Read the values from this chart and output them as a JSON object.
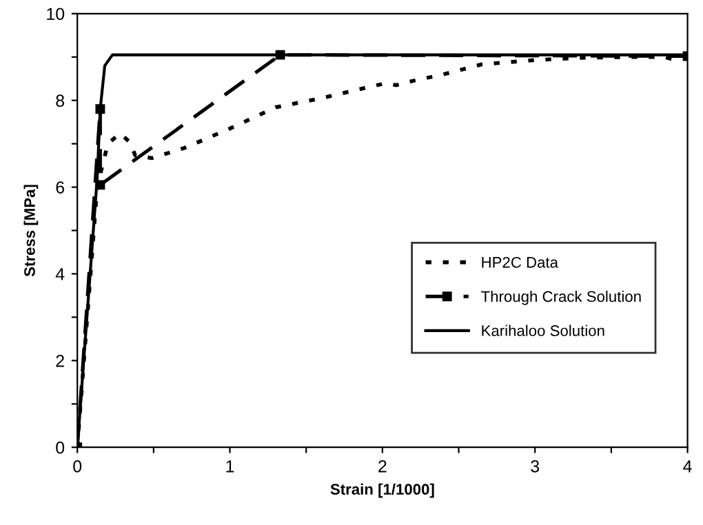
{
  "chart_data": {
    "type": "line",
    "xlabel": "Strain [1/1000]",
    "ylabel": "Stress [MPa]",
    "xlim": [
      0,
      4
    ],
    "ylim": [
      0,
      10
    ],
    "xticks": [
      0,
      {
        "value": 0.5,
        "label": null
      },
      1,
      {
        "value": 1.5,
        "label": null
      },
      2,
      {
        "value": 2.5,
        "label": null
      },
      3,
      {
        "value": 3.5,
        "label": null
      },
      4
    ],
    "yticks": [
      0,
      {
        "value": 1,
        "label": null
      },
      2,
      {
        "value": 3,
        "label": null
      },
      4,
      {
        "value": 5,
        "label": null
      },
      6,
      {
        "value": 7,
        "label": null
      },
      8,
      {
        "value": 9,
        "label": null
      },
      10
    ],
    "grid": false,
    "legend": "lower right",
    "series": [
      {
        "name": "HP2C Data",
        "color": "#000000",
        "line_style": "dotted",
        "marker": "none",
        "x": [
          0,
          0.13,
          0.2,
          0.28,
          0.34,
          0.38,
          0.49,
          0.7,
          1.0,
          1.3,
          1.6,
          1.9,
          2.03,
          2.09,
          2.2,
          2.4,
          2.65,
          3.0,
          3.29,
          3.6,
          3.85,
          3.9,
          4.0
        ],
        "values": [
          0,
          6.0,
          7.0,
          7.24,
          7.05,
          6.73,
          6.67,
          6.9,
          7.35,
          7.84,
          8.05,
          8.3,
          8.4,
          8.35,
          8.45,
          8.6,
          8.83,
          8.93,
          8.98,
          9.0,
          9.0,
          8.95,
          9.02
        ]
      },
      {
        "name": "Through Crack Solution",
        "color": "#000000",
        "line_style": "dashed",
        "marker": "square",
        "x": [
          0,
          0.15,
          0.15,
          1.33,
          4.0
        ],
        "values": [
          0,
          7.8,
          6.05,
          9.05,
          9.02
        ]
      },
      {
        "name": "Karihaloo Solution",
        "color": "#000000",
        "line_style": "solid",
        "marker": "none",
        "x": [
          0,
          0.13,
          0.15,
          0.18,
          0.23,
          4.0
        ],
        "values": [
          0,
          6.2,
          7.8,
          8.8,
          9.05,
          9.05
        ]
      }
    ]
  }
}
